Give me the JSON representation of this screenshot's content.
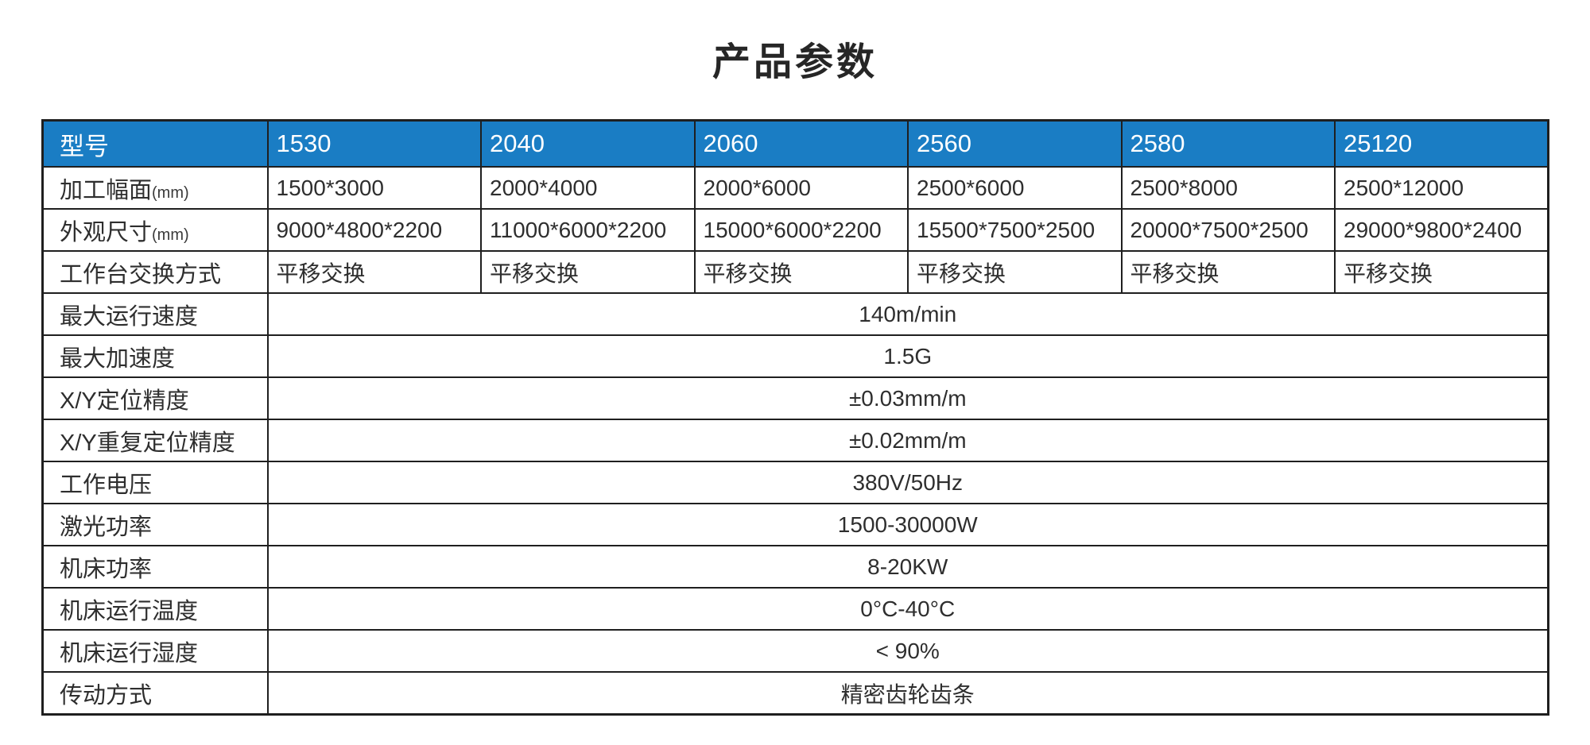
{
  "title": "产品参数",
  "colors": {
    "header_bg": "#1a7dc4",
    "header_text": "#ffffff",
    "border": "#1f1f1f",
    "body_text": "#2e2e2e",
    "page_bg": "#ffffff"
  },
  "table": {
    "header": {
      "label": "型号",
      "models": [
        "1530",
        "2040",
        "2060",
        "2560",
        "2580",
        "25120"
      ]
    },
    "per_model_rows": [
      {
        "label": "加工幅面",
        "unit": "(mm)",
        "values": [
          "1500*3000",
          "2000*4000",
          "2000*6000",
          "2500*6000",
          "2500*8000",
          "2500*12000"
        ]
      },
      {
        "label": "外观尺寸",
        "unit": "(mm)",
        "values": [
          "9000*4800*2200",
          "11000*6000*2200",
          "15000*6000*2200",
          "15500*7500*2500",
          "20000*7500*2500",
          "29000*9800*2400"
        ]
      },
      {
        "label": "工作台交换方式",
        "unit": "",
        "values": [
          "平移交换",
          "平移交换",
          "平移交换",
          "平移交换",
          "平移交换",
          "平移交换"
        ]
      }
    ],
    "merged_rows": [
      {
        "label": "最大运行速度",
        "value": "140m/min"
      },
      {
        "label": "最大加速度",
        "value": "1.5G"
      },
      {
        "label": "X/Y定位精度",
        "value": "±0.03mm/m"
      },
      {
        "label": "X/Y重复定位精度",
        "value": "±0.02mm/m"
      },
      {
        "label": "工作电压",
        "value": "380V/50Hz"
      },
      {
        "label": "激光功率",
        "value": "1500-30000W"
      },
      {
        "label": "机床功率",
        "value": "8-20KW"
      },
      {
        "label": "机床运行温度",
        "value": "0°C-40°C"
      },
      {
        "label": "机床运行湿度",
        "value": "< 90%"
      },
      {
        "label": "传动方式",
        "value": "精密齿轮齿条"
      }
    ]
  }
}
